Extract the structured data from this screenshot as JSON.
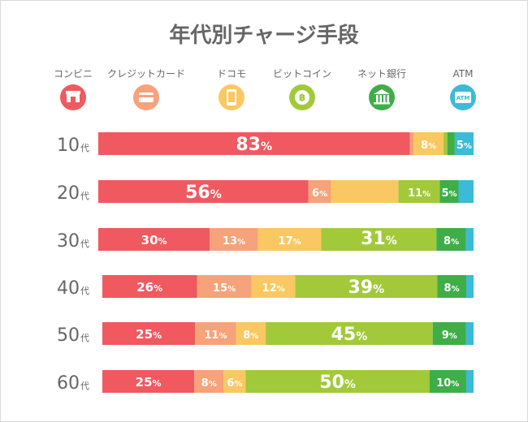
{
  "chart_data": {
    "type": "bar",
    "orientation": "horizontal",
    "stacked": true,
    "title": "年代別チャージ手段",
    "age_suffix": "代",
    "percent_sign": "%",
    "categories": [
      "10",
      "20",
      "30",
      "40",
      "50",
      "60"
    ],
    "legend_placement": "top",
    "grid": false,
    "series": [
      {
        "name": "コンビニ",
        "icon": "store-icon",
        "color": "#f0595f",
        "values": [
          83,
          56,
          30,
          26,
          25,
          25
        ]
      },
      {
        "name": "クレジットカード",
        "icon": "credit-card-icon",
        "color": "#f6a27a",
        "values": [
          1,
          6,
          13,
          15,
          11,
          8
        ]
      },
      {
        "name": "ドコモ",
        "icon": "smartphone-icon",
        "color": "#f9c862",
        "values": [
          8,
          18,
          17,
          12,
          8,
          6
        ]
      },
      {
        "name": "ビットコイン",
        "icon": "bitcoin-icon",
        "color": "#a2c93a",
        "values": [
          1,
          11,
          31,
          39,
          45,
          50
        ]
      },
      {
        "name": "ネット銀行",
        "icon": "bank-icon",
        "color": "#3fae49",
        "values": [
          2,
          5,
          8,
          8,
          9,
          10
        ]
      },
      {
        "name": "ATM",
        "icon": "atm-icon",
        "color": "#3bbbd8",
        "values": [
          5,
          4,
          2,
          2,
          2,
          2
        ]
      }
    ],
    "labels_shown": [
      [
        true,
        false,
        true,
        false,
        false,
        true
      ],
      [
        true,
        true,
        false,
        true,
        true,
        false
      ],
      [
        true,
        true,
        true,
        true,
        true,
        false
      ],
      [
        true,
        true,
        true,
        true,
        true,
        false
      ],
      [
        true,
        true,
        true,
        true,
        true,
        false
      ],
      [
        true,
        true,
        true,
        true,
        true,
        false
      ]
    ],
    "labels_outside": [
      [
        false,
        true,
        false,
        true,
        true,
        false
      ],
      [
        false,
        false,
        false,
        false,
        false,
        true
      ],
      [
        false,
        false,
        false,
        false,
        false,
        true
      ],
      [
        false,
        false,
        false,
        false,
        false,
        true
      ],
      [
        false,
        false,
        false,
        false,
        false,
        true
      ],
      [
        false,
        false,
        false,
        false,
        false,
        true
      ]
    ]
  }
}
